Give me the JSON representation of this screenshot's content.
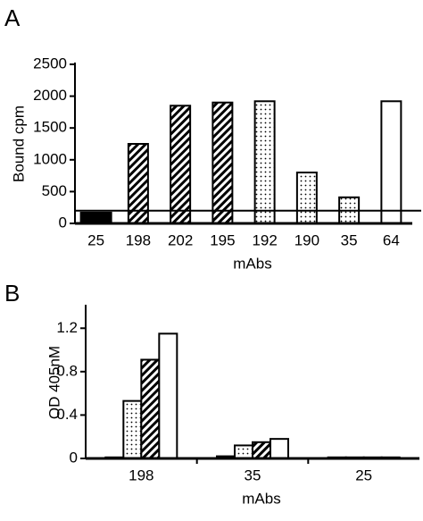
{
  "chart_data": [
    {
      "type": "bar",
      "title": "A",
      "ylabel": "Bound cpm",
      "xlabel": "mAbs",
      "categories": [
        "25",
        "198",
        "202",
        "195",
        "192",
        "190",
        "35",
        "64"
      ],
      "values": [
        170,
        1250,
        1850,
        1900,
        1920,
        800,
        410,
        1920
      ],
      "patterns": [
        "solid",
        "hatch",
        "hatch",
        "hatch",
        "dots",
        "dots",
        "dots",
        "open"
      ],
      "hline": 200,
      "ylim": [
        0,
        2500
      ],
      "yticks": [
        0,
        500,
        1000,
        1500,
        2000,
        2500
      ]
    },
    {
      "type": "grouped_bar",
      "title": "B",
      "ylabel": "OD 405nM",
      "xlabel": "mAbs",
      "categories": [
        "198",
        "35",
        "25"
      ],
      "series": [
        {
          "pattern": "solid",
          "values": [
            0.01,
            0.02,
            0.01
          ]
        },
        {
          "pattern": "dots",
          "values": [
            0.53,
            0.12,
            0.01
          ]
        },
        {
          "pattern": "hatch",
          "values": [
            0.91,
            0.15,
            0.01
          ]
        },
        {
          "pattern": "open",
          "values": [
            1.15,
            0.18,
            0.01
          ]
        }
      ],
      "ylim": [
        0,
        1.4
      ],
      "yticks": [
        0,
        0.4,
        0.8,
        1.2
      ]
    }
  ]
}
